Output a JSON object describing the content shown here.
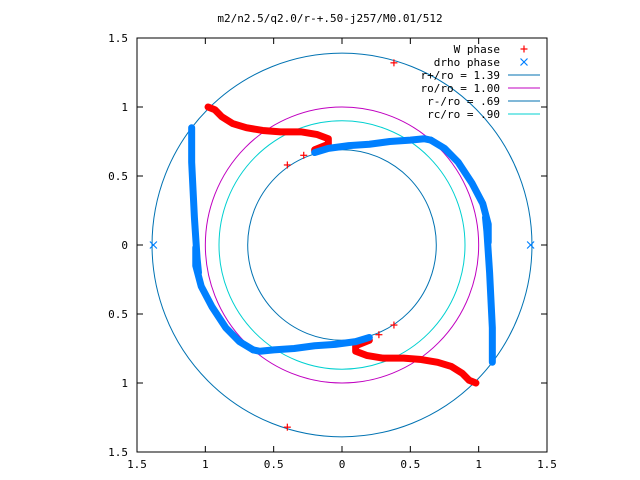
{
  "chart_data": {
    "type": "scatter",
    "title": "m2/n2.5/q2.0/r-+.50-j257/M0.01/512",
    "xlabel": "",
    "ylabel": "",
    "xlim": [
      -1.5,
      1.5
    ],
    "ylim": [
      -1.5,
      1.5
    ],
    "x_tick_values": [
      -1.5,
      -1,
      -0.5,
      0,
      0.5,
      1,
      1.5
    ],
    "x_tick_labels": [
      "1.5",
      "1",
      "0.5",
      "0",
      "0.5",
      "1",
      "1.5"
    ],
    "y_tick_values": [
      1.5,
      1,
      0.5,
      0,
      -0.5,
      -1,
      -1.5
    ],
    "y_tick_labels": [
      "1.5",
      "1",
      "0.5",
      "0",
      "0.5",
      "1",
      "1.5"
    ],
    "grid": false,
    "legend_position": "top-right",
    "colors": {
      "w_phase": "#ff0000",
      "drho_phase": "#0080ff",
      "r_plus": "#0072b2",
      "ro": "#c000c0",
      "r_minus": "#0072b2",
      "rc": "#00d0d0"
    },
    "series": [
      {
        "name": "W phase",
        "marker": "plus",
        "x": [
          0.38,
          -0.4,
          -0.28,
          -0.2,
          -0.15,
          0.27,
          0.38,
          -0.4
        ],
        "y": [
          1.32,
          0.58,
          0.65,
          0.68,
          0.7,
          -0.65,
          -0.58,
          -1.32
        ],
        "curves": [
          {
            "x": [
              -0.98,
              -0.93,
              -0.88,
              -0.8,
              -0.7,
              -0.58,
              -0.45,
              -0.3,
              -0.18,
              -0.1,
              -0.1,
              -0.15,
              -0.2
            ],
            "y": [
              1.0,
              0.98,
              0.93,
              0.88,
              0.85,
              0.83,
              0.82,
              0.82,
              0.8,
              0.77,
              0.73,
              0.71,
              0.69
            ]
          },
          {
            "x": [
              0.98,
              0.93,
              0.88,
              0.8,
              0.7,
              0.58,
              0.45,
              0.3,
              0.18,
              0.1,
              0.1,
              0.15,
              0.2
            ],
            "y": [
              -1.0,
              -0.98,
              -0.93,
              -0.88,
              -0.85,
              -0.83,
              -0.82,
              -0.82,
              -0.8,
              -0.77,
              -0.73,
              -0.71,
              -0.69
            ]
          }
        ]
      },
      {
        "name": "drho phase",
        "marker": "cross",
        "x": [
          1.38,
          -1.38
        ],
        "y": [
          0.0,
          0.0
        ],
        "curves": [
          {
            "x": [
              -1.1,
              -1.1,
              -1.09,
              -1.08,
              -1.07,
              -1.06,
              -1.05
            ],
            "y": [
              0.85,
              0.6,
              0.4,
              0.2,
              0.05,
              -0.1,
              -0.2
            ]
          },
          {
            "x": [
              1.1,
              1.1,
              1.09,
              1.08,
              1.07,
              1.06,
              1.05
            ],
            "y": [
              -0.85,
              -0.6,
              -0.4,
              -0.2,
              -0.05,
              0.1,
              0.2
            ]
          },
          {
            "x": [
              -0.2,
              -0.1,
              0.05,
              0.2,
              0.35,
              0.5,
              0.6,
              0.65
            ],
            "y": [
              0.67,
              0.7,
              0.72,
              0.73,
              0.75,
              0.76,
              0.77,
              0.76
            ]
          },
          {
            "x": [
              0.2,
              0.1,
              -0.05,
              -0.2,
              -0.35,
              -0.5,
              -0.6,
              -0.65
            ],
            "y": [
              -0.67,
              -0.7,
              -0.72,
              -0.73,
              -0.75,
              -0.76,
              -0.77,
              -0.76
            ]
          },
          {
            "x": [
              0.65,
              0.75,
              0.85,
              0.95,
              1.03,
              1.07,
              1.07
            ],
            "y": [
              0.76,
              0.7,
              0.6,
              0.45,
              0.3,
              0.15,
              0.02
            ]
          },
          {
            "x": [
              -0.65,
              -0.75,
              -0.85,
              -0.95,
              -1.03,
              -1.07,
              -1.07
            ],
            "y": [
              -0.76,
              -0.7,
              -0.6,
              -0.45,
              -0.3,
              -0.15,
              -0.02
            ]
          }
        ]
      },
      {
        "name": "r+/ro = 1.39",
        "type": "circle",
        "radius": 1.39
      },
      {
        "name": "ro/ro = 1.00",
        "type": "circle",
        "radius": 1.0
      },
      {
        "name": "r-/ro = .69",
        "type": "circle",
        "radius": 0.69
      },
      {
        "name": "rc/ro = .90",
        "type": "circle",
        "radius": 0.9
      }
    ]
  }
}
